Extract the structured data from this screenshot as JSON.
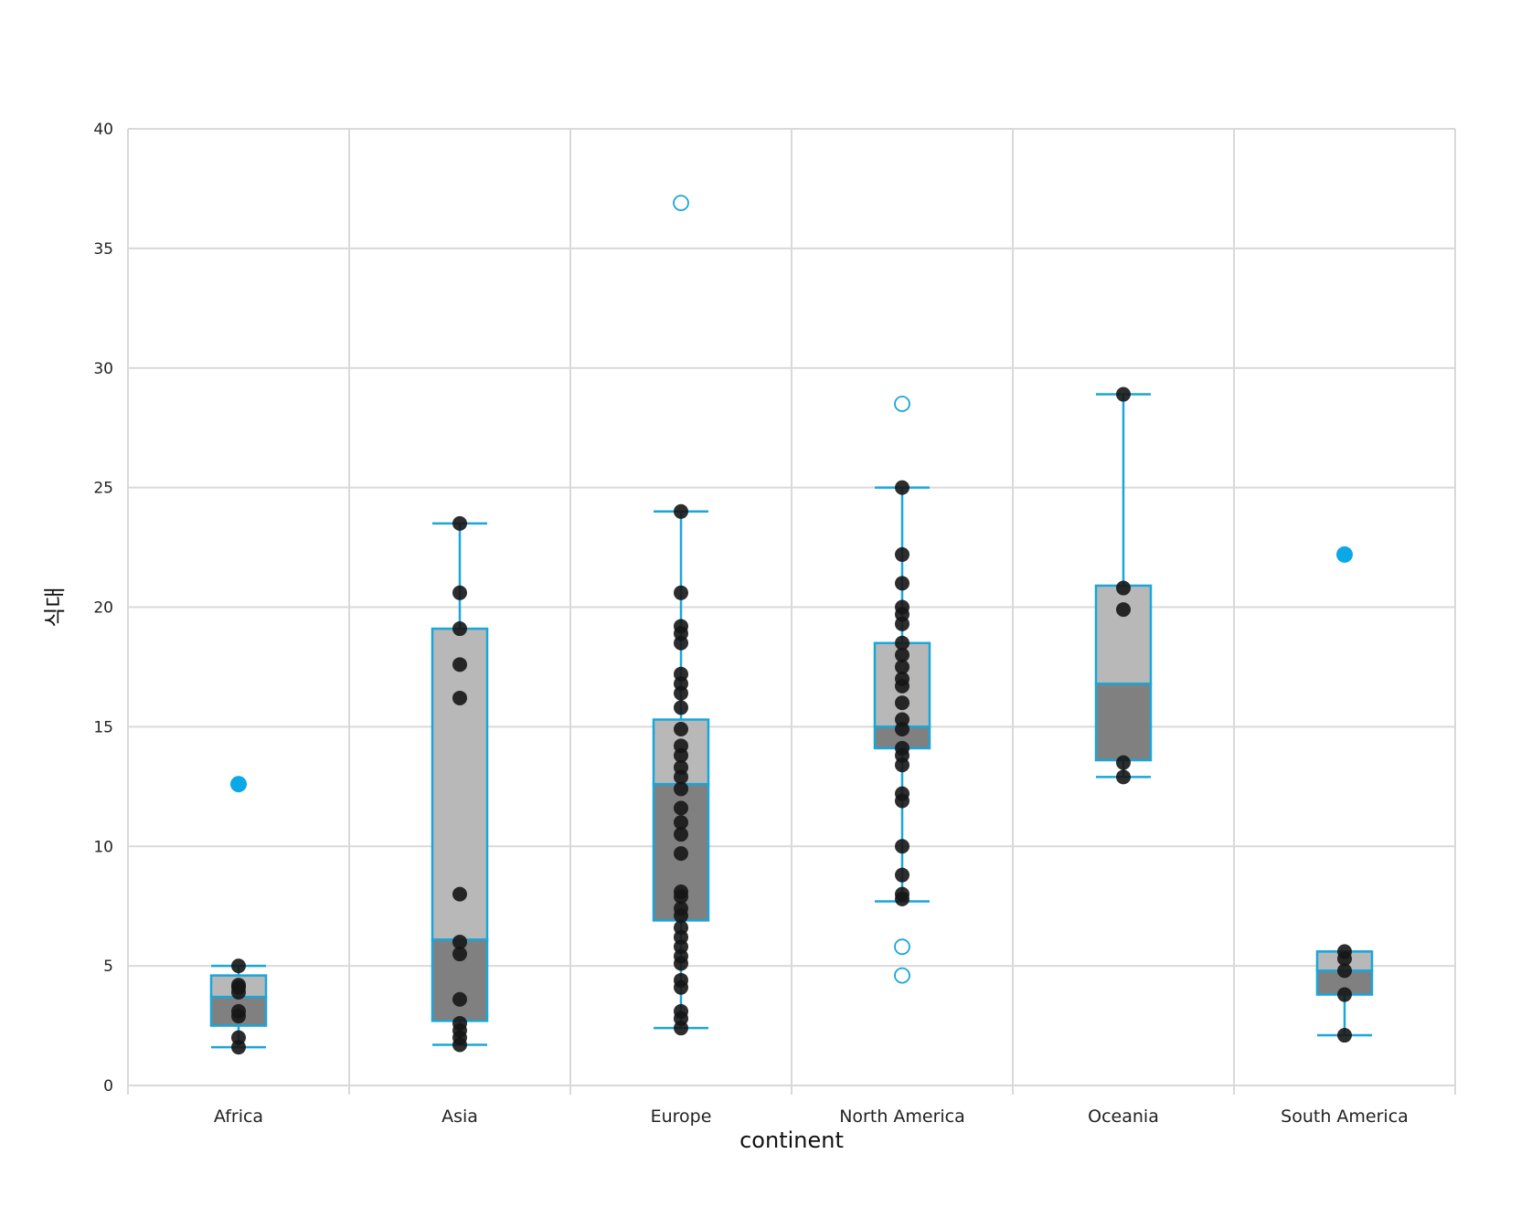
{
  "chart_data": {
    "type": "box",
    "xlabel": "continent",
    "ylabel": "식대",
    "ylim": [
      0,
      40
    ],
    "yticks": [
      0,
      5,
      10,
      15,
      20,
      25,
      30,
      35,
      40
    ],
    "grid": true,
    "colors": {
      "box_outline": "#1aa6d9",
      "box_upper_fill": "#b8b8b8",
      "box_lower_fill": "#808080",
      "point": "#161616",
      "mean_point": "#0aa8e6",
      "grid": "#d9d9d9"
    },
    "categories": [
      "Africa",
      "Asia",
      "Europe",
      "North America",
      "Oceania",
      "South America"
    ],
    "boxes": [
      {
        "category": "Africa",
        "whisker_low": 1.6,
        "q1": 2.5,
        "median": 3.7,
        "q3": 4.6,
        "whisker_high": 5.0,
        "mean": 12.6,
        "outliers": [],
        "points": [
          1.6,
          2.0,
          2.9,
          3.1,
          3.9,
          4.1,
          4.2,
          5.0
        ]
      },
      {
        "category": "Asia",
        "whisker_low": 1.7,
        "q1": 2.7,
        "median": 6.1,
        "q3": 19.1,
        "whisker_high": 23.5,
        "mean": null,
        "outliers": [],
        "points": [
          1.7,
          2.0,
          2.3,
          2.6,
          3.6,
          5.5,
          6.0,
          8.0,
          16.2,
          17.6,
          19.1,
          20.6,
          23.5
        ]
      },
      {
        "category": "Europe",
        "whisker_low": 2.4,
        "q1": 6.9,
        "median": 12.6,
        "q3": 15.3,
        "whisker_high": 24.0,
        "mean": null,
        "outliers": [
          36.9
        ],
        "points": [
          2.4,
          2.8,
          3.1,
          4.1,
          4.4,
          5.1,
          5.4,
          5.8,
          6.2,
          6.6,
          7.1,
          7.4,
          7.9,
          8.1,
          9.7,
          10.5,
          11.0,
          11.6,
          12.4,
          12.9,
          13.3,
          13.8,
          14.2,
          14.9,
          15.8,
          16.4,
          16.8,
          17.2,
          18.5,
          18.9,
          19.2,
          20.6,
          24.0
        ]
      },
      {
        "category": "North America",
        "whisker_low": 7.7,
        "q1": 14.1,
        "median": 15.0,
        "q3": 18.5,
        "whisker_high": 25.0,
        "mean": null,
        "outliers": [
          4.6,
          5.8,
          28.5
        ],
        "points": [
          7.8,
          8.0,
          8.8,
          10.0,
          11.9,
          12.2,
          13.4,
          13.8,
          14.1,
          14.9,
          15.3,
          16.0,
          16.7,
          17.0,
          17.5,
          18.0,
          18.5,
          19.3,
          19.7,
          20.0,
          21.0,
          22.2,
          25.0
        ]
      },
      {
        "category": "Oceania",
        "whisker_low": 12.9,
        "q1": 13.6,
        "median": 16.8,
        "q3": 20.9,
        "whisker_high": 28.9,
        "mean": null,
        "outliers": [],
        "points": [
          12.9,
          13.5,
          19.9,
          20.8,
          28.9
        ]
      },
      {
        "category": "South America",
        "whisker_low": 2.1,
        "q1": 3.8,
        "median": 4.8,
        "q3": 5.6,
        "whisker_high": 5.6,
        "mean": 22.2,
        "outliers": [],
        "points": [
          2.1,
          3.8,
          4.8,
          5.3,
          5.6
        ]
      }
    ]
  }
}
